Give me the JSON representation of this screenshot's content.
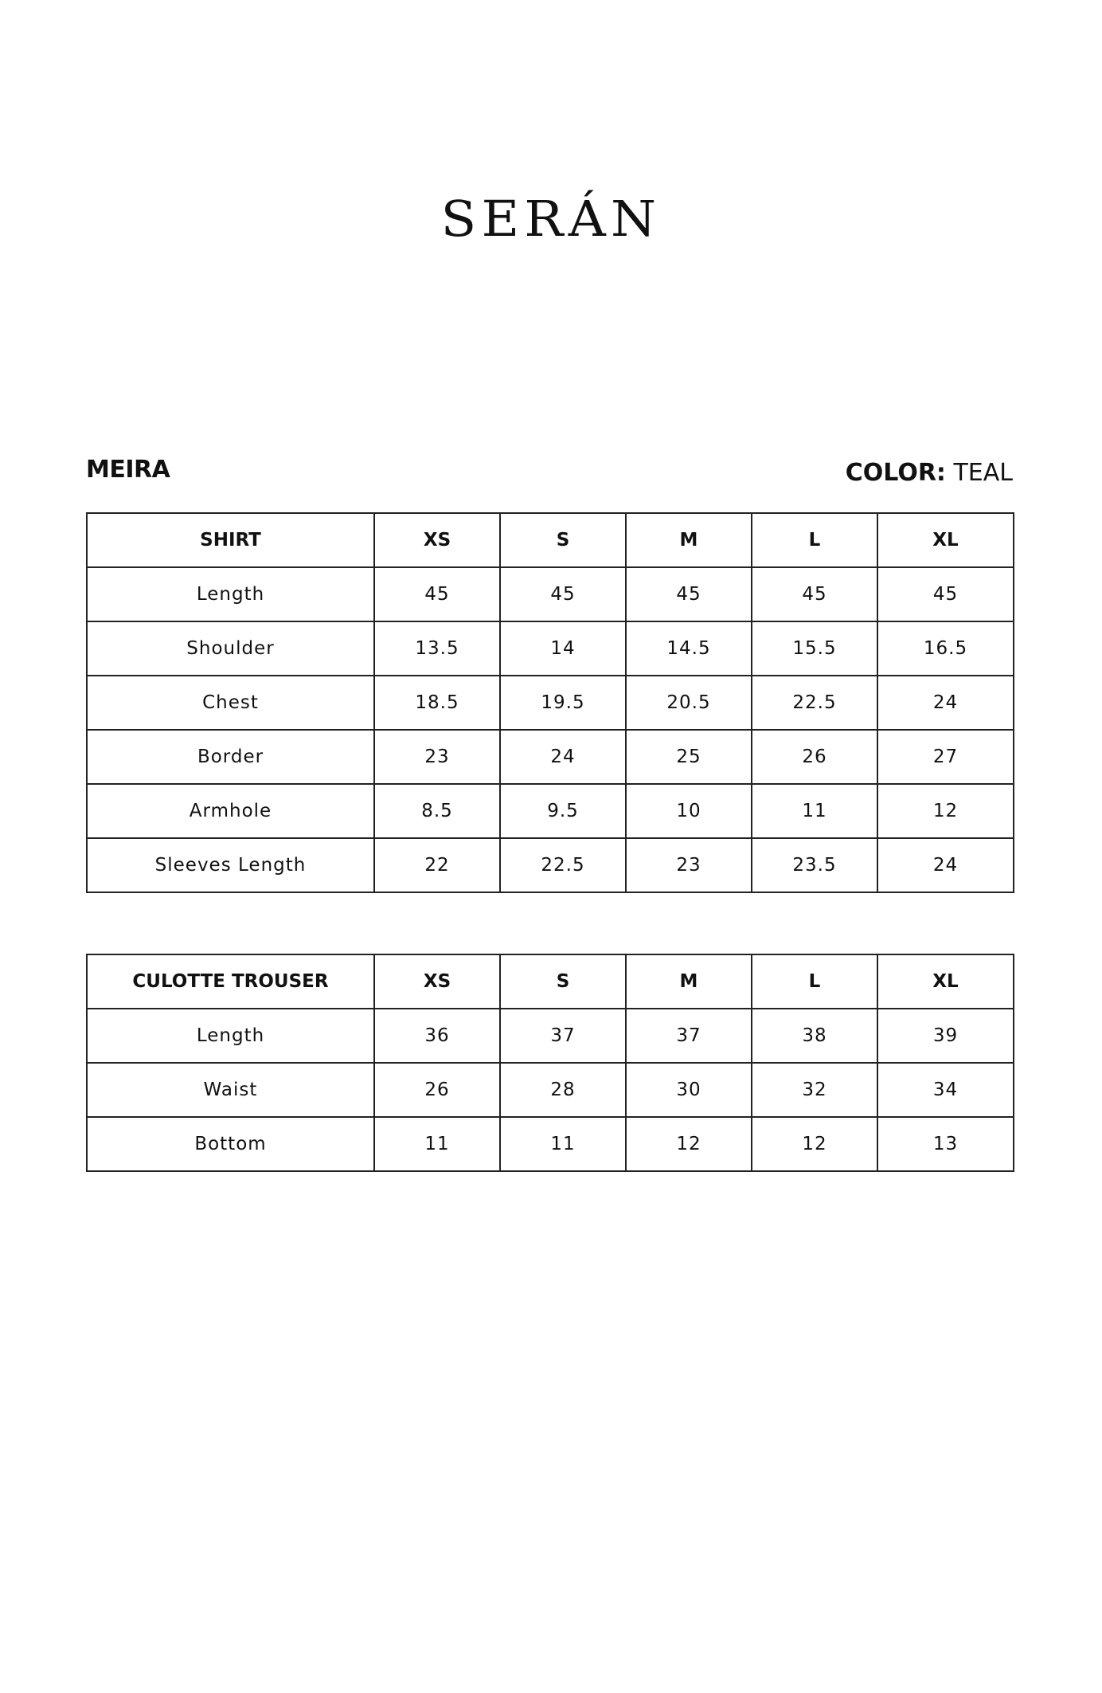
{
  "brand": {
    "logo_text": "SERÁN"
  },
  "product": {
    "name": "MEIRA",
    "color_label": "COLOR:",
    "color_value": "TEAL"
  },
  "tables": [
    {
      "headers": [
        "SHIRT",
        "XS",
        "S",
        "M",
        "L",
        "XL"
      ],
      "rows": [
        [
          "Length",
          "45",
          "45",
          "45",
          "45",
          "45"
        ],
        [
          "Shoulder",
          "13.5",
          "14",
          "14.5",
          "15.5",
          "16.5"
        ],
        [
          "Chest",
          "18.5",
          "19.5",
          "20.5",
          "22.5",
          "24"
        ],
        [
          "Border",
          "23",
          "24",
          "25",
          "26",
          "27"
        ],
        [
          "Armhole",
          "8.5",
          "9.5",
          "10",
          "11",
          "12"
        ],
        [
          "Sleeves Length",
          "22",
          "22.5",
          "23",
          "23.5",
          "24"
        ]
      ]
    },
    {
      "headers": [
        "CULOTTE TROUSER",
        "XS",
        "S",
        "M",
        "L",
        "XL"
      ],
      "rows": [
        [
          "Length",
          "36",
          "37",
          "37",
          "38",
          "39"
        ],
        [
          "Waist",
          "26",
          "28",
          "30",
          "32",
          "34"
        ],
        [
          "Bottom",
          "11",
          "11",
          "12",
          "12",
          "13"
        ]
      ]
    }
  ]
}
